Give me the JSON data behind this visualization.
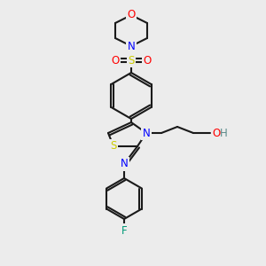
{
  "background_color": "#ececec",
  "bond_color": "#1a1a1a",
  "atom_colors": {
    "O": "#ff0000",
    "N": "#0000ff",
    "S_sulfonyl": "#cccc00",
    "S_thiazole": "#cccc00",
    "F": "#009977",
    "H": "#5a8a8a",
    "C": "#1a1a1a"
  },
  "figsize": [
    3.0,
    3.0
  ],
  "dpi": 100,
  "lw": 1.5,
  "fs": 8.5
}
